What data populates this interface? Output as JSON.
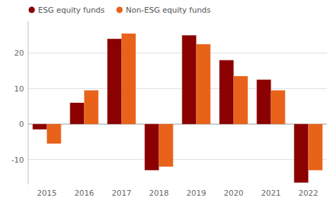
{
  "chart_data": {
    "type": "bar",
    "categories": [
      "2015",
      "2016",
      "2017",
      "2018",
      "2019",
      "2020",
      "2021",
      "2022"
    ],
    "series": [
      {
        "name": "ESG equity funds",
        "color": "#8B0000",
        "values": [
          -1.5,
          6.0,
          24.0,
          -13.0,
          25.0,
          18.0,
          12.5,
          -16.5
        ]
      },
      {
        "name": "Non-ESG equity funds",
        "color": "#E8621A",
        "values": [
          -5.5,
          9.5,
          25.5,
          -12.0,
          22.5,
          13.5,
          9.5,
          -13.0
        ]
      }
    ],
    "ylim": [
      -17,
      29
    ],
    "yticks": [
      -10,
      0,
      10,
      20
    ],
    "grid": true,
    "legend": "upper left"
  }
}
